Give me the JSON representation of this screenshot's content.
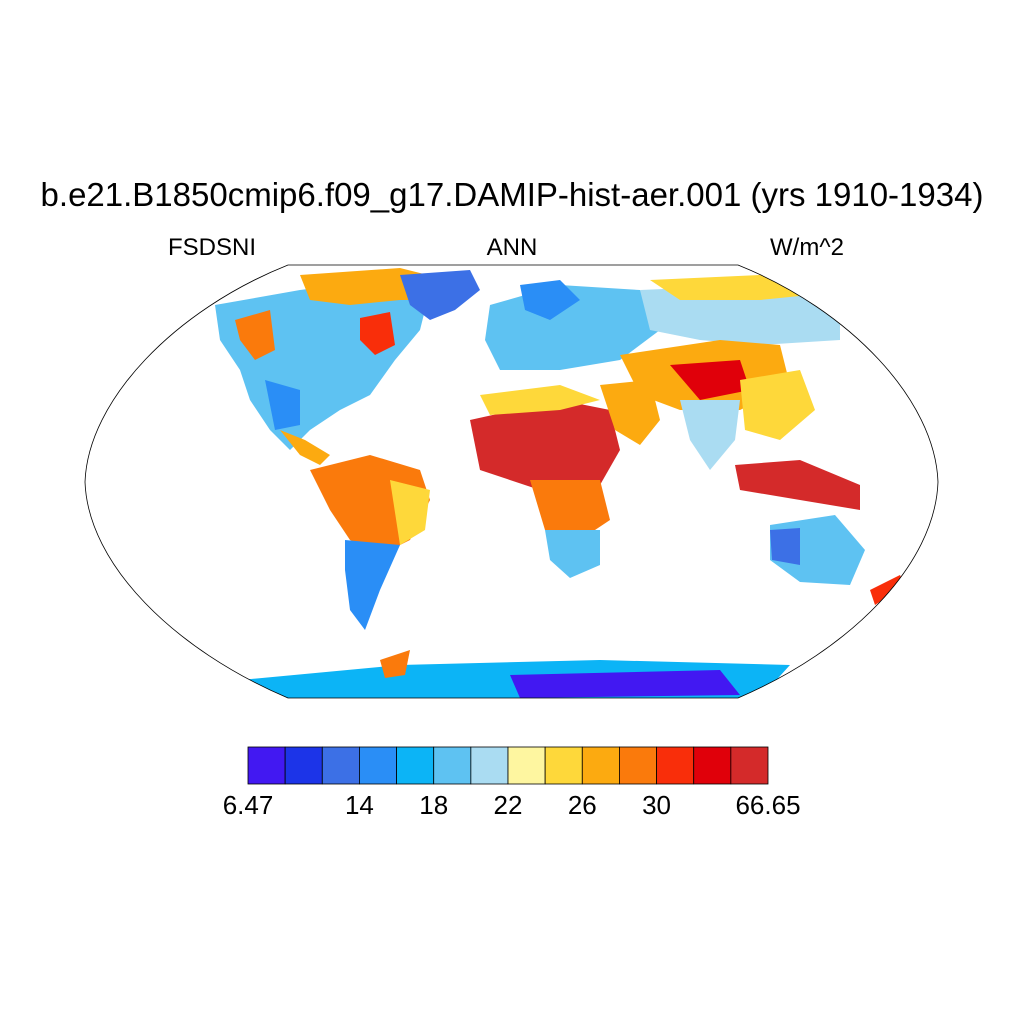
{
  "title": "b.e21.B1850cmip6.f09_g17.DAMIP-hist-aer.001 (yrs 1910-1934)",
  "subtitle_left": "FSDSNI",
  "subtitle_center": "ANN",
  "subtitle_right": "W/m^2",
  "colorbar": {
    "colors": [
      "#4218f2",
      "#1c34e8",
      "#3c70e6",
      "#2a8ef6",
      "#0cb4f6",
      "#5ec2f2",
      "#aadcf2",
      "#fef6a0",
      "#fed83a",
      "#fcaa10",
      "#fa7a0c",
      "#f92e0a",
      "#e0000a",
      "#d42a2a"
    ],
    "labels": [
      "6.47",
      "14",
      "18",
      "22",
      "26",
      "30",
      "66.65"
    ]
  },
  "map_legend_colors": {
    "ocean": "#ffffff",
    "coastline": "#000000"
  }
}
